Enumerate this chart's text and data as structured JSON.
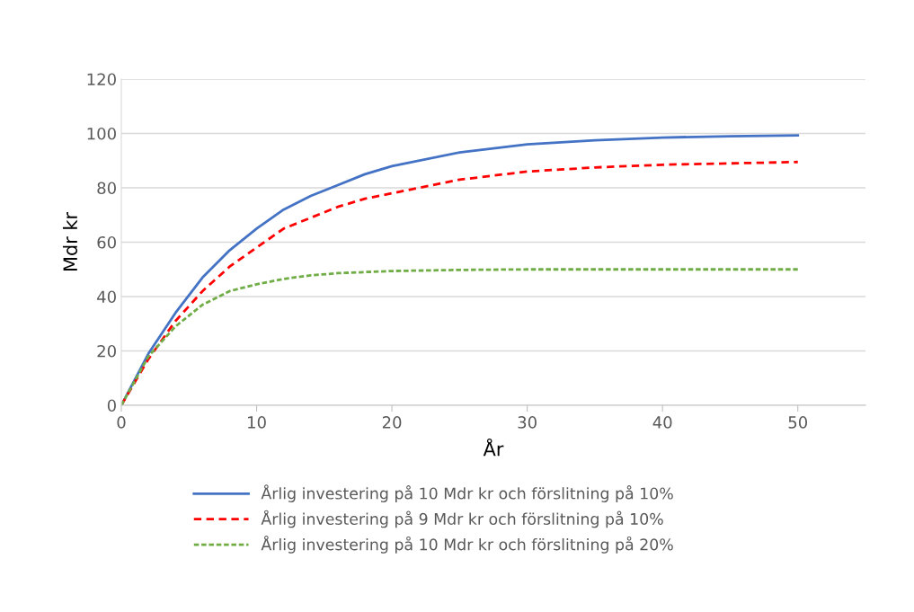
{
  "chart_data": {
    "type": "line",
    "xlabel": "År",
    "ylabel": "Mdr kr",
    "xlim": [
      0,
      55
    ],
    "xticks": [
      0,
      10,
      20,
      30,
      40,
      50
    ],
    "ylim": [
      0,
      120
    ],
    "yticks": [
      0,
      20,
      40,
      60,
      80,
      100,
      120
    ],
    "grid": "y",
    "legend": "bottom",
    "marker": "none",
    "x": [
      0,
      2,
      4,
      6,
      8,
      10,
      12,
      14,
      16,
      18,
      20,
      25,
      30,
      35,
      40,
      45,
      50
    ],
    "series": [
      {
        "name": "Årlig investering på 10 Mdr kr och förslitning på 10%",
        "color": "#4472c4",
        "line_style": "solid",
        "values": [
          0,
          19,
          34,
          47,
          57,
          65,
          72,
          77,
          81,
          85,
          88,
          93,
          96,
          97.5,
          98.5,
          99,
          99.3
        ]
      },
      {
        "name": "Årlig investering på 9 Mdr kr och förslitning på 10%",
        "color": "#ff0000",
        "line_style": "dashed",
        "values": [
          0,
          17,
          31,
          42,
          51,
          58,
          65,
          69,
          73,
          76,
          78,
          83,
          86,
          87.5,
          88.5,
          89,
          89.5
        ]
      },
      {
        "name": "Årlig investering på 10 Mdr kr och förslitning på 20%",
        "color": "#70ad47",
        "line_style": "dotted",
        "values": [
          0,
          18,
          29,
          37,
          42,
          44.5,
          46.5,
          47.8,
          48.6,
          49,
          49.4,
          49.8,
          50,
          50,
          50,
          50,
          50
        ]
      }
    ]
  }
}
